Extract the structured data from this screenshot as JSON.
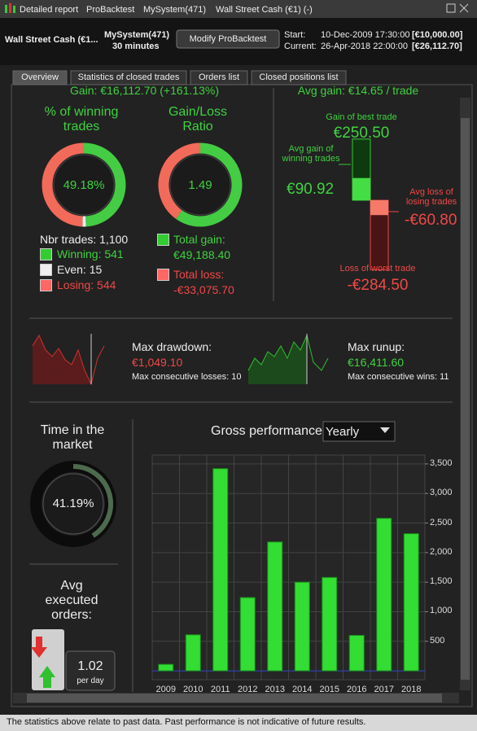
{
  "window": {
    "tabs": [
      "Detailed report",
      "ProBacktest",
      "MySystem(471)",
      "Wall Street Cash (€1) (-)"
    ]
  },
  "header": {
    "instrument": "Wall Street Cash (€1...",
    "system": "MySystem(471)",
    "timeframe": "30 minutes",
    "button": "Modify ProBacktest",
    "start_label": "Start:",
    "start_date": "10-Dec-2009 17:30:00",
    "start_capital": "[€10,000.00]",
    "current_label": "Current:",
    "current_date": "26-Apr-2018 22:00:00",
    "current_capital": "[€26,112.70]"
  },
  "tabs": [
    "Overview",
    "Statistics of closed trades",
    "Orders list",
    "Closed positions list"
  ],
  "overview": {
    "gain": "Gain: €16,112.70 (+161.13%)",
    "winning_title": "% of winning trades",
    "winning_pct": "49.18%",
    "nbr_trades_label": "Nbr trades:",
    "nbr_trades": {
      "value": 1100,
      "label": "1,100"
    },
    "winning_label": "Winning:",
    "winning": 541,
    "even_label": "Even:",
    "even": 15,
    "losing_label": "Losing:",
    "losing": 544,
    "ratio_title": "Gain/Loss Ratio",
    "ratio": 1.49,
    "total_gain_label": "Total gain:",
    "total_gain": "€49,188.40",
    "total_loss_label": "Total loss:",
    "total_loss": "-€33,075.70",
    "avg_gain": "Avg gain: €14.65 / trade",
    "best_label": "Gain of best trade",
    "best": {
      "value": 250.5,
      "label": "€250.50"
    },
    "avg_win_label": "Avg gain of winning trades",
    "avg_win": {
      "value": 90.92,
      "label": "€90.92"
    },
    "avg_loss_label": "Avg loss of losing trades",
    "avg_loss": {
      "value": -60.8,
      "label": "-€60.80"
    },
    "worst_label": "Loss of worst trade",
    "worst": {
      "value": -284.5,
      "label": "-€284.50"
    },
    "drawdown_label": "Max drawdown:",
    "drawdown": "€1,049.10",
    "max_losses": "Max consecutive losses: 10",
    "runup_label": "Max runup:",
    "runup": "€16,411.60",
    "max_wins": "Max consecutive wins: 11",
    "market_title": "Time in the market",
    "market_pct": {
      "value": 41.19,
      "label": "41.19%"
    },
    "orders_title": "Avg executed orders:",
    "orders": "1.02",
    "orders_unit": "per day"
  },
  "chart_data": {
    "type": "bar",
    "title": "Gross performance",
    "period": "Yearly",
    "categories": [
      "2009",
      "2010",
      "2011",
      "2012",
      "2013",
      "2014",
      "2015",
      "2016",
      "2017",
      "2018"
    ],
    "values": [
      110,
      610,
      3420,
      1240,
      2180,
      1500,
      1580,
      600,
      2580,
      2320
    ],
    "color": "#33dd33",
    "ylim": [
      -150,
      3650
    ],
    "yticks": [
      500,
      {
        "value": 1000,
        "label": "1,000"
      },
      {
        "value": 1500,
        "label": "1,500"
      },
      {
        "value": 2000,
        "label": "2,000"
      },
      {
        "value": 2500,
        "label": "2,500"
      },
      {
        "value": 3000,
        "label": "3,000"
      },
      {
        "value": 3500,
        "label": "3,500"
      }
    ],
    "grid": true
  },
  "footer": "The statistics above relate to past data. Past performance is not indicative of future results."
}
